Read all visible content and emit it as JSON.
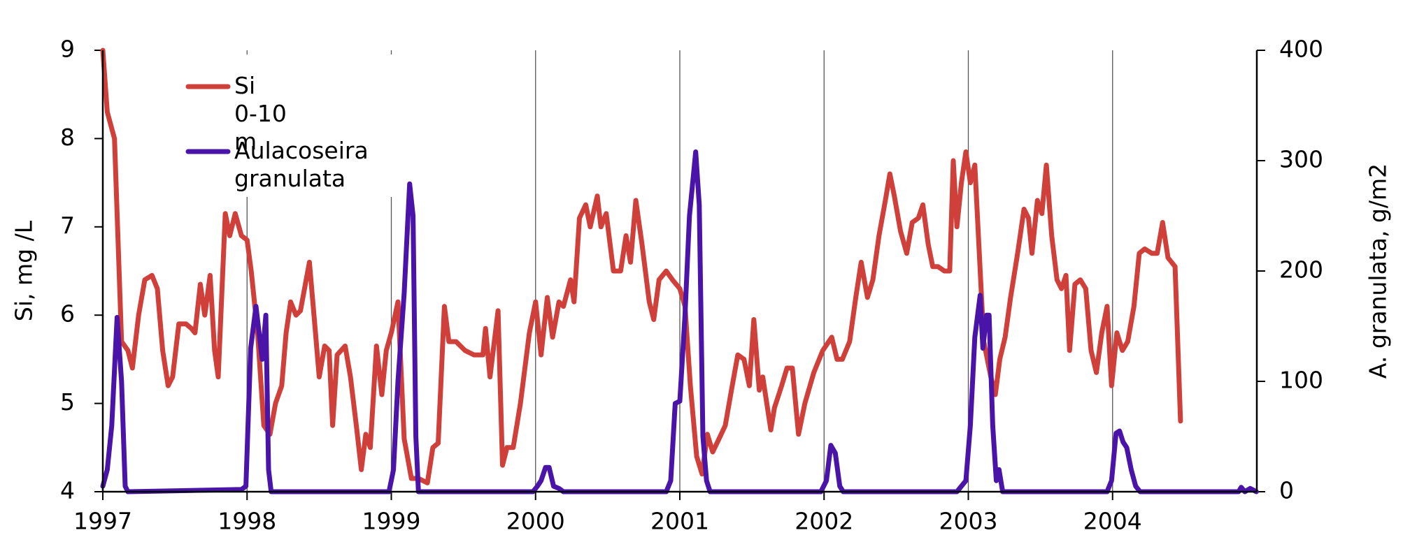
{
  "chart_data": {
    "type": "line",
    "ylabel": "Si, mg /L",
    "y2label": "A. granulata, g/m2",
    "xlim": [
      1997,
      2005
    ],
    "xticks": [
      1997,
      1998,
      1999,
      2000,
      2001,
      2002,
      2003,
      2004
    ],
    "ylim": [
      4,
      9
    ],
    "yticks": [
      4,
      5,
      6,
      7,
      8,
      9
    ],
    "y2lim": [
      0,
      400
    ],
    "y2ticks": [
      0,
      100,
      200,
      300,
      400
    ],
    "grid": true,
    "legend": "upper left",
    "series": [
      {
        "name": "Si 0-10 m",
        "color": "#d0403a",
        "axis": "y",
        "x": [
          1997.0,
          1997.031,
          1997.081,
          1997.13,
          1997.174,
          1997.205,
          1997.248,
          1997.291,
          1997.341,
          1997.378,
          1997.415,
          1997.453,
          1997.484,
          1997.527,
          1997.577,
          1997.614,
          1997.639,
          1997.676,
          1997.707,
          1997.744,
          1997.775,
          1997.8,
          1997.849,
          1997.88,
          1997.918,
          1997.961,
          1998.0,
          1998.029,
          1998.073,
          1998.116,
          1998.159,
          1998.197,
          1998.24,
          1998.271,
          1998.302,
          1998.339,
          1998.37,
          1998.432,
          1998.469,
          1998.5,
          1998.538,
          1998.569,
          1998.593,
          1998.624,
          1998.68,
          1998.717,
          1998.761,
          1998.792,
          1998.823,
          1998.854,
          1998.897,
          1998.934,
          1998.965,
          1999.0,
          1999.046,
          1999.089,
          1999.139,
          1999.188,
          1999.25,
          1999.288,
          1999.325,
          1999.368,
          1999.399,
          1999.449,
          1999.511,
          1999.573,
          1999.635,
          1999.653,
          1999.684,
          1999.74,
          1999.771,
          1999.802,
          1999.845,
          1999.895,
          1999.957,
          2000.0,
          2000.038,
          2000.081,
          2000.118,
          2000.162,
          2000.193,
          2000.242,
          2000.267,
          2000.304,
          2000.348,
          2000.379,
          2000.428,
          2000.453,
          2000.49,
          2000.54,
          2000.59,
          2000.627,
          2000.658,
          2000.695,
          2000.738,
          2000.788,
          2000.819,
          2000.856,
          2000.906,
          2000.949,
          2001.0,
          2001.036,
          2001.073,
          2001.117,
          2001.154,
          2001.191,
          2001.228,
          2001.272,
          2001.315,
          2001.358,
          2001.402,
          2001.445,
          2001.482,
          2001.513,
          2001.551,
          2001.575,
          2001.631,
          2001.656,
          2001.706,
          2001.743,
          2001.78,
          2001.823,
          2001.867,
          2001.929,
          2001.991,
          2002.053,
          2002.09,
          2002.127,
          2002.177,
          2002.22,
          2002.257,
          2002.301,
          2002.338,
          2002.381,
          2002.425,
          2002.456,
          2002.487,
          2002.53,
          2002.573,
          2002.611,
          2002.654,
          2002.685,
          2002.722,
          2002.753,
          2002.79,
          2002.834,
          2002.871,
          2002.896,
          2002.921,
          2002.952,
          2002.983,
          2003.014,
          2003.045,
          2003.076,
          2003.107,
          2003.156,
          2003.187,
          2003.218,
          2003.255,
          2003.293,
          2003.342,
          2003.386,
          2003.417,
          2003.441,
          2003.479,
          2003.51,
          2003.541,
          2003.578,
          2003.615,
          2003.646,
          2003.677,
          2003.702,
          2003.739,
          2003.776,
          2003.814,
          2003.851,
          2003.888,
          2003.925,
          2003.962,
          2003.993,
          2004.03,
          2004.068,
          2004.105,
          2004.148,
          2004.185,
          2004.223,
          2004.272,
          2004.309,
          2004.347,
          2004.384,
          2004.433,
          2004.471
        ],
        "values": [
          9.0,
          8.3,
          8.0,
          5.7,
          5.6,
          5.4,
          6.0,
          6.4,
          6.45,
          6.3,
          5.6,
          5.2,
          5.3,
          5.9,
          5.9,
          5.85,
          5.8,
          6.35,
          6.0,
          6.45,
          5.6,
          5.3,
          7.15,
          6.9,
          7.15,
          6.9,
          6.85,
          6.5,
          5.8,
          4.75,
          4.65,
          5.0,
          5.2,
          5.8,
          6.15,
          6.0,
          6.05,
          6.6,
          5.9,
          5.3,
          5.65,
          5.6,
          4.75,
          5.55,
          5.65,
          5.3,
          4.7,
          4.25,
          4.65,
          4.5,
          5.65,
          5.1,
          5.6,
          5.8,
          6.15,
          4.6,
          4.15,
          4.15,
          4.1,
          4.5,
          4.55,
          6.1,
          5.7,
          5.7,
          5.6,
          5.55,
          5.55,
          5.85,
          5.3,
          6.05,
          4.3,
          4.5,
          4.5,
          5.0,
          5.8,
          6.15,
          5.55,
          6.2,
          5.75,
          6.15,
          6.1,
          6.4,
          6.15,
          7.1,
          7.25,
          7.0,
          7.35,
          7.0,
          7.15,
          6.5,
          6.5,
          6.9,
          6.6,
          7.3,
          6.8,
          6.15,
          5.95,
          6.4,
          6.5,
          6.4,
          6.3,
          6.1,
          5.2,
          4.4,
          4.2,
          4.65,
          4.45,
          4.6,
          4.75,
          5.15,
          5.55,
          5.5,
          5.2,
          5.95,
          5.15,
          5.3,
          4.7,
          4.95,
          5.2,
          5.4,
          5.4,
          4.65,
          5.0,
          5.35,
          5.6,
          5.75,
          5.5,
          5.5,
          5.7,
          6.2,
          6.6,
          6.2,
          6.4,
          6.9,
          7.3,
          7.6,
          7.35,
          6.95,
          6.7,
          7.05,
          7.1,
          7.25,
          6.8,
          6.55,
          6.55,
          6.5,
          6.5,
          7.75,
          7.0,
          7.5,
          7.85,
          7.5,
          7.7,
          6.7,
          5.7,
          5.3,
          5.1,
          5.5,
          5.75,
          6.2,
          6.7,
          7.2,
          7.1,
          6.7,
          7.3,
          7.15,
          7.7,
          6.9,
          6.4,
          6.3,
          6.45,
          5.6,
          6.35,
          6.4,
          6.3,
          5.6,
          5.35,
          5.8,
          6.1,
          5.2,
          5.8,
          5.6,
          5.7,
          6.1,
          6.7,
          6.75,
          6.7,
          6.7,
          7.05,
          6.65,
          6.55,
          4.8
        ]
      },
      {
        "name": "Aulacoseira granulata",
        "color": "#4a14a8",
        "axis": "y2",
        "x": [
          1997.0,
          1997.031,
          1997.062,
          1997.099,
          1997.13,
          1997.155,
          1997.174,
          1997.961,
          1997.992,
          1998.025,
          1998.062,
          1998.087,
          1998.105,
          1998.13,
          1998.149,
          1998.167,
          1998.984,
          1999.015,
          1999.046,
          1999.089,
          1999.127,
          1999.151,
          1999.17,
          1999.188,
          1999.982,
          2000.013,
          2000.038,
          2000.069,
          2000.094,
          2000.125,
          2000.162,
          2000.193,
          2000.906,
          2000.937,
          2000.968,
          2001.0,
          2001.036,
          2001.067,
          2001.11,
          2001.135,
          2001.16,
          2001.185,
          2001.21,
          2001.978,
          2002.016,
          2002.047,
          2002.078,
          2002.109,
          2002.133,
          2002.921,
          2002.983,
          2003.014,
          2003.045,
          2003.082,
          2003.101,
          2003.126,
          2003.144,
          2003.169,
          2003.194,
          2003.213,
          2003.238,
          2003.962,
          2003.993,
          2004.024,
          2004.048,
          2004.073,
          2004.098,
          2004.129,
          2004.16,
          2004.191,
          2004.873,
          2004.892,
          2004.917,
          2004.954,
          2004.997
        ],
        "values": [
          5,
          20,
          60,
          158,
          100,
          5,
          0,
          2,
          5,
          130,
          168,
          140,
          120,
          160,
          20,
          0,
          0,
          20,
          100,
          180,
          279,
          250,
          50,
          0,
          0,
          5,
          10,
          22,
          22,
          5,
          3,
          0,
          0,
          10,
          80,
          82,
          160,
          250,
          308,
          260,
          50,
          10,
          0,
          0,
          10,
          42,
          35,
          5,
          0,
          0,
          10,
          60,
          140,
          178,
          130,
          160,
          160,
          60,
          10,
          20,
          0,
          0,
          10,
          53,
          55,
          45,
          40,
          20,
          5,
          0,
          0,
          4,
          0,
          3,
          0
        ]
      }
    ]
  }
}
